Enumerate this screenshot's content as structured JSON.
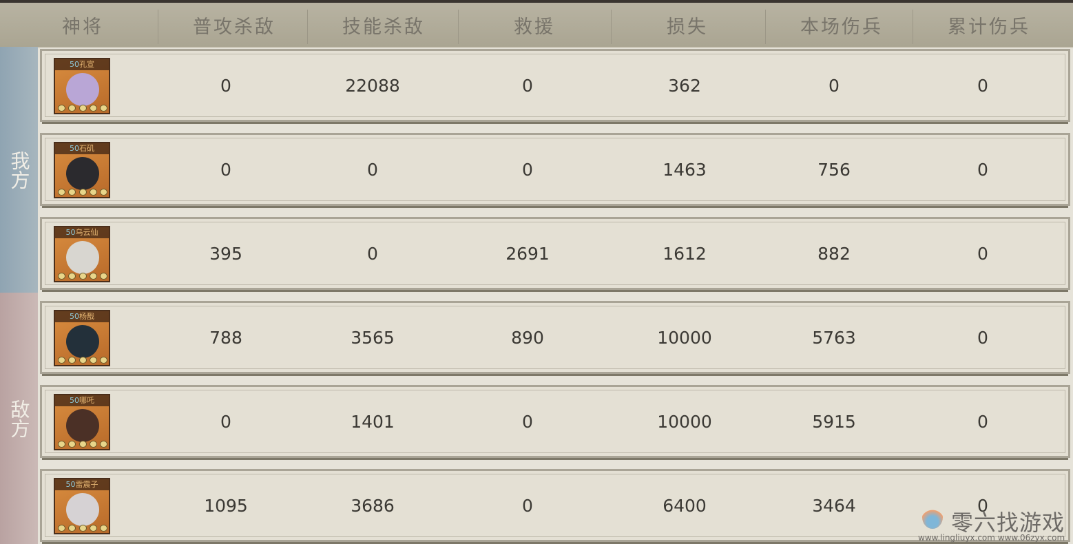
{
  "header": {
    "columns": [
      "神将",
      "普攻杀敌",
      "技能杀敌",
      "救援",
      "损失",
      "本场伤兵",
      "累计伤兵"
    ]
  },
  "sides": {
    "our": "我方",
    "enemy": "敌方"
  },
  "colors": {
    "our_side": "#9fb0ba",
    "enemy_side": "#c4b1ae",
    "row_bg": "#e4e0d4"
  },
  "rows": [
    {
      "level": "50",
      "name": "孔宣",
      "side": "our",
      "face": "#b9a6d6",
      "values": [
        "0",
        "22088",
        "0",
        "362",
        "0",
        "0"
      ]
    },
    {
      "level": "50",
      "name": "石矶",
      "side": "our",
      "face": "#2b2a2e",
      "values": [
        "0",
        "0",
        "0",
        "1463",
        "756",
        "0"
      ]
    },
    {
      "level": "50",
      "name": "乌云仙",
      "side": "our",
      "face": "#d8d6d0",
      "values": [
        "395",
        "0",
        "2691",
        "1612",
        "882",
        "0"
      ]
    },
    {
      "level": "50",
      "name": "杨戬",
      "side": "enemy",
      "face": "#23303a",
      "values": [
        "788",
        "3565",
        "890",
        "10000",
        "5763",
        "0"
      ]
    },
    {
      "level": "50",
      "name": "哪吒",
      "side": "enemy",
      "face": "#4b3026",
      "values": [
        "0",
        "1401",
        "0",
        "10000",
        "5915",
        "0"
      ]
    },
    {
      "level": "50",
      "name": "雷震子",
      "side": "enemy",
      "face": "#d6d2d4",
      "values": [
        "1095",
        "3686",
        "0",
        "6400",
        "3464",
        "0"
      ]
    }
  ],
  "watermark": {
    "title": "零六找游戏",
    "url": "www.lingliuyx.com    www.06zyx.com"
  }
}
